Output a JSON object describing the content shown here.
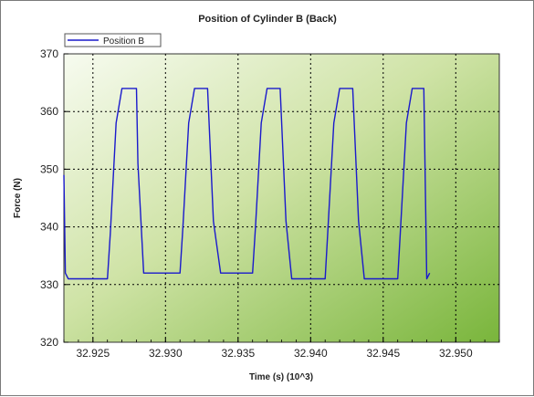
{
  "chart_data": {
    "type": "line",
    "title": "Position of Cylinder B (Back)",
    "xlabel": "Time (s) (10^3)",
    "ylabel": "Force (N)",
    "xlim": [
      32.923,
      32.953
    ],
    "ylim": [
      320,
      370
    ],
    "xticks": [
      "32.925",
      "32.930",
      "32.935",
      "32.940",
      "32.945",
      "32.950"
    ],
    "xtick_values": [
      32.925,
      32.93,
      32.935,
      32.94,
      32.945,
      32.95
    ],
    "yticks": [
      "320",
      "330",
      "340",
      "350",
      "360",
      "370"
    ],
    "ytick_values": [
      320,
      330,
      340,
      350,
      360,
      370
    ],
    "grid": true,
    "legend_position": "top-left",
    "series": [
      {
        "name": "Position B",
        "color": "#1a1acc",
        "x": [
          32.923,
          32.9231,
          32.9233,
          32.924,
          32.925,
          32.926,
          32.9262,
          32.9266,
          32.927,
          32.9275,
          32.928,
          32.9281,
          32.9285,
          32.929,
          32.93,
          32.931,
          32.9312,
          32.9316,
          32.932,
          32.9325,
          32.9329,
          32.9333,
          32.9338,
          32.9345,
          32.935,
          32.936,
          32.9362,
          32.9366,
          32.937,
          32.9375,
          32.9379,
          32.9383,
          32.9387,
          32.9395,
          32.9405,
          32.941,
          32.9412,
          32.9416,
          32.942,
          32.9425,
          32.9429,
          32.9433,
          32.9437,
          32.9445,
          32.9455,
          32.946,
          32.9462,
          32.9466,
          32.947,
          32.9475,
          32.9478,
          32.948,
          32.9482
        ],
        "y": [
          349,
          332,
          331,
          331,
          331,
          331,
          339,
          358,
          364,
          364,
          364,
          351,
          332,
          332,
          332,
          332,
          340,
          358,
          364,
          364,
          364,
          341,
          332,
          332,
          332,
          332,
          340,
          358,
          364,
          364,
          364,
          341,
          331,
          331,
          331,
          331,
          340,
          358,
          364,
          364,
          364,
          341,
          331,
          331,
          331,
          331,
          340,
          358,
          364,
          364,
          364,
          331,
          332
        ]
      }
    ]
  }
}
